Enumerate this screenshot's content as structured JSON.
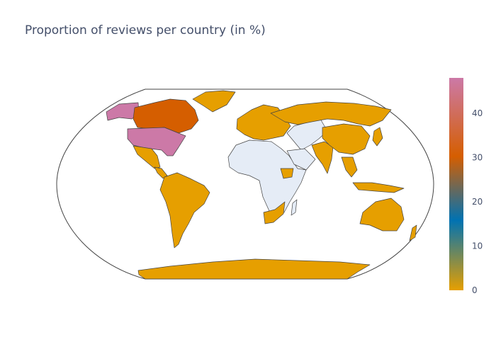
{
  "chart_data": {
    "type": "choropleth",
    "title": "Proportion of reviews per country (in %)",
    "projection": "robinson",
    "no_data_color": "#e5ecf6",
    "colorscale": [
      "#e69f00",
      "#0072b2",
      "#d55e00",
      "#cc79a7"
    ],
    "colorbar": {
      "range": [
        0,
        48
      ],
      "ticks": [
        "0",
        "10",
        "20",
        "30",
        "40"
      ],
      "tick_values": [
        0,
        10,
        20,
        30,
        40
      ]
    },
    "regions": [
      {
        "name": "United States",
        "value": 47
      },
      {
        "name": "Canada",
        "value": 30
      },
      {
        "name": "Alaska",
        "value": 47
      },
      {
        "name": "Greenland",
        "value": 1
      },
      {
        "name": "Mexico",
        "value": 1
      },
      {
        "name": "Central America",
        "value": 0.5
      },
      {
        "name": "South America",
        "value": 0.5
      },
      {
        "name": "Europe",
        "value": 1
      },
      {
        "name": "Russia",
        "value": 0.5
      },
      {
        "name": "Middle East",
        "value": 0.5
      },
      {
        "name": "India",
        "value": 0.5
      },
      {
        "name": "China",
        "value": 0.5
      },
      {
        "name": "Southeast Asia",
        "value": 0.5
      },
      {
        "name": "Japan",
        "value": 0.5
      },
      {
        "name": "Australia",
        "value": 0.5
      },
      {
        "name": "Antarctica",
        "value": 0.5
      },
      {
        "name": "South Africa",
        "value": 0.5
      },
      {
        "name": "Ethiopia",
        "value": 0.5
      }
    ]
  }
}
